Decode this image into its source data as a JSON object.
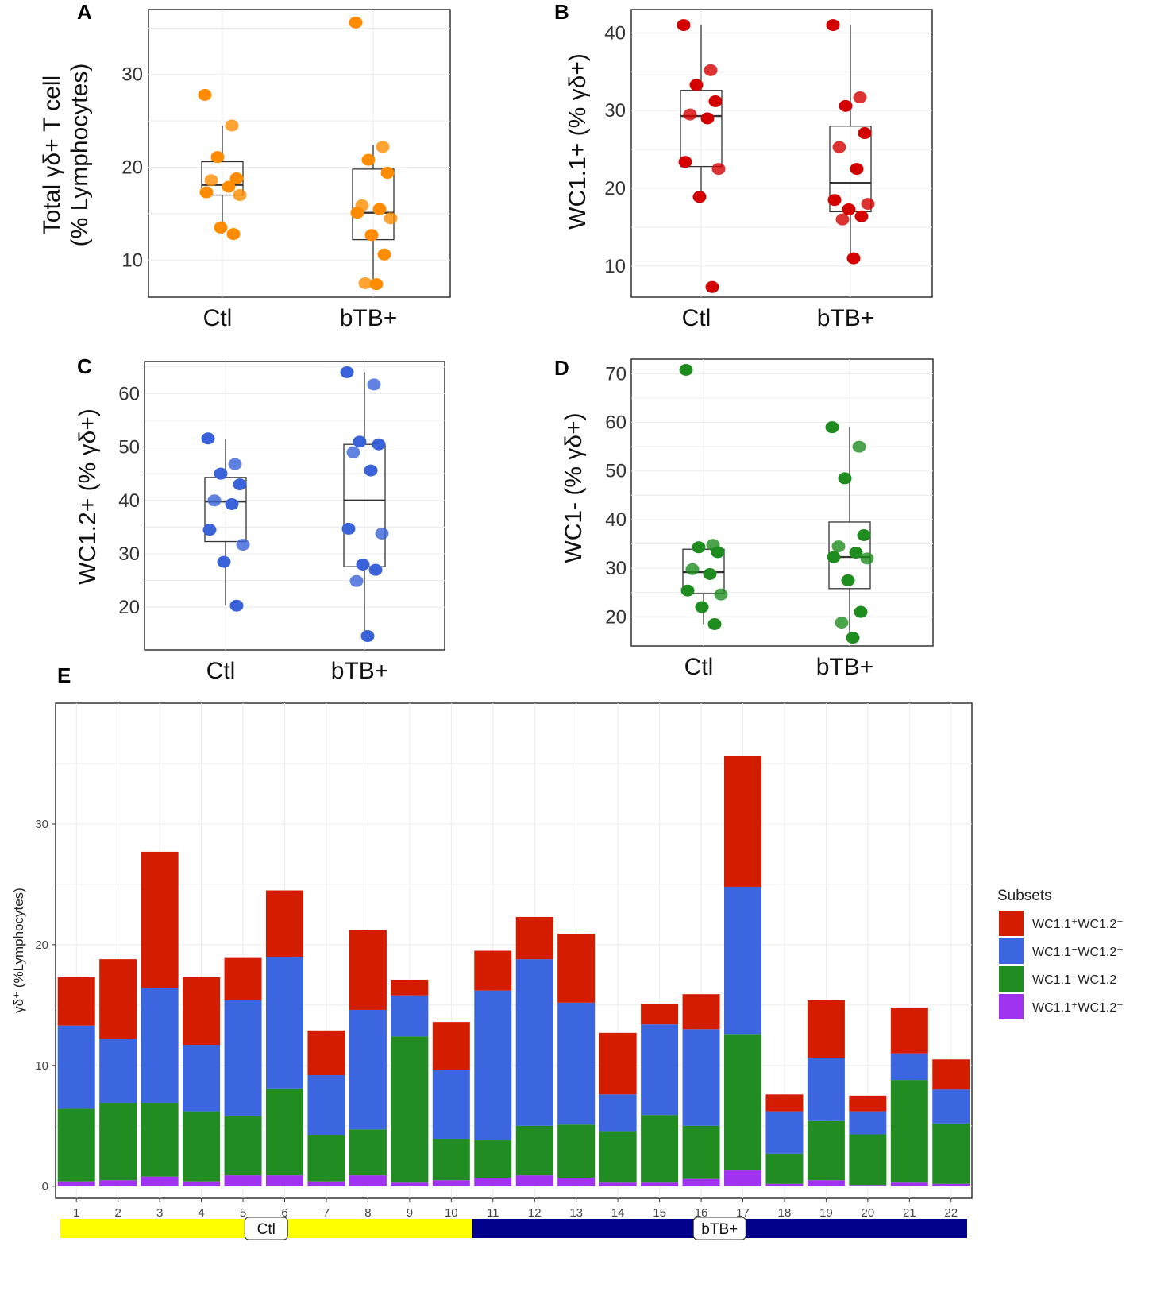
{
  "chart_data": [
    {
      "panel": "A",
      "type": "box",
      "categories": [
        "Ctl",
        "bTB+"
      ],
      "ylabel": "Total γδ+ T cell",
      "ylabel2": "(% Lymphocytes)",
      "ylim": [
        6,
        37
      ],
      "yticks": [
        10,
        20,
        30
      ],
      "color": "#ff8c00",
      "boxes": [
        {
          "q1": 17.0,
          "median": 18.1,
          "q3": 20.6,
          "whisker_low": 12.8,
          "whisker_high": 24.5
        },
        {
          "q1": 12.2,
          "median": 15.1,
          "q3": 19.8,
          "whisker_low": 7.5,
          "whisker_high": 22.4
        }
      ],
      "points": [
        [
          27.8,
          24.5,
          21.1,
          18.8,
          18.6,
          17.9,
          17.3,
          17.0,
          13.5,
          12.8
        ],
        [
          35.6,
          22.2,
          20.8,
          19.4,
          15.9,
          15.5,
          15.1,
          14.5,
          12.7,
          10.6,
          7.5,
          7.4
        ]
      ]
    },
    {
      "panel": "B",
      "type": "box",
      "categories": [
        "Ctl",
        "bTB+"
      ],
      "ylabel": "WC1.1+ (% γδ+)",
      "ylim": [
        6,
        43
      ],
      "yticks": [
        10,
        20,
        30,
        40
      ],
      "color": "#d40000",
      "boxes": [
        {
          "q1": 22.8,
          "median": 29.3,
          "q3": 32.6,
          "whisker_low": 18.9,
          "whisker_high": 41.0
        },
        {
          "q1": 17.0,
          "median": 20.7,
          "q3": 28.0,
          "whisker_low": 11.0,
          "whisker_high": 41.0
        }
      ],
      "points": [
        [
          41.0,
          35.2,
          33.3,
          31.2,
          29.5,
          29.0,
          23.4,
          22.5,
          18.9,
          7.3
        ],
        [
          41.0,
          31.7,
          30.6,
          27.1,
          25.3,
          22.5,
          18.5,
          18.0,
          17.3,
          16.4,
          16.0,
          11.0
        ]
      ]
    },
    {
      "panel": "C",
      "type": "box",
      "categories": [
        "Ctl",
        "bTB+"
      ],
      "ylabel": "WC1.2+ (% γδ+)",
      "ylim": [
        12,
        66
      ],
      "yticks": [
        20,
        30,
        40,
        50,
        60
      ],
      "color": "#3a63d9",
      "boxes": [
        {
          "q1": 32.3,
          "median": 39.8,
          "q3": 44.3,
          "whisker_low": 20.3,
          "whisker_high": 51.5
        },
        {
          "q1": 27.6,
          "median": 40.0,
          "q3": 50.5,
          "whisker_low": 14.6,
          "whisker_high": 64.0
        }
      ],
      "points": [
        [
          51.6,
          46.8,
          45.0,
          43.0,
          40.0,
          39.3,
          34.5,
          31.7,
          28.5,
          20.3
        ],
        [
          64.0,
          61.7,
          51.0,
          50.5,
          49.0,
          45.6,
          34.7,
          33.8,
          28.0,
          27.0,
          24.9,
          14.6
        ]
      ]
    },
    {
      "panel": "D",
      "type": "box",
      "categories": [
        "Ctl",
        "bTB+"
      ],
      "ylabel": "WC1- (% γδ+)",
      "ylim": [
        14,
        73
      ],
      "yticks": [
        20,
        30,
        40,
        50,
        60,
        70
      ],
      "color": "#1e8c1e",
      "boxes": [
        {
          "q1": 24.8,
          "median": 29.2,
          "q3": 33.9,
          "whisker_low": 18.5,
          "whisker_high": 33.9
        },
        {
          "q1": 25.8,
          "median": 32.3,
          "q3": 39.5,
          "whisker_low": 15.7,
          "whisker_high": 59.0
        }
      ],
      "points": [
        [
          70.8,
          34.8,
          34.3,
          33.3,
          29.8,
          28.8,
          25.4,
          24.6,
          22.0,
          18.5
        ],
        [
          59.0,
          55.0,
          48.5,
          36.8,
          34.5,
          33.2,
          32.3,
          32.0,
          27.5,
          21.0,
          18.8,
          15.7
        ]
      ]
    },
    {
      "panel": "E",
      "type": "stacked-bar",
      "categories": [
        "1",
        "2",
        "3",
        "4",
        "5",
        "6",
        "7",
        "8",
        "9",
        "10",
        "11",
        "12",
        "13",
        "14",
        "15",
        "16",
        "17",
        "18",
        "19",
        "20",
        "21",
        "22"
      ],
      "ylabel": "γδ⁺ (%Lymphocytes)",
      "ylim": [
        -1,
        40
      ],
      "yticks": [
        0,
        10,
        20,
        30
      ],
      "legend_title": "Subsets",
      "series": [
        {
          "name": "WC1.1⁺WC1.2⁺",
          "color": "#a033f0",
          "values": [
            0.4,
            0.5,
            0.8,
            0.4,
            0.9,
            0.9,
            0.4,
            0.9,
            0.3,
            0.5,
            0.7,
            0.9,
            0.7,
            0.3,
            0.3,
            0.6,
            1.3,
            0.2,
            0.5,
            0.1,
            0.3,
            0.2
          ]
        },
        {
          "name": "WC1.1⁻WC1.2⁻",
          "color": "#218c21",
          "values": [
            6.0,
            6.4,
            6.1,
            5.8,
            4.9,
            7.2,
            3.8,
            3.8,
            12.1,
            3.4,
            3.1,
            4.1,
            4.4,
            4.2,
            5.6,
            4.4,
            11.3,
            2.5,
            4.9,
            4.2,
            8.5,
            5.0
          ]
        },
        {
          "name": "WC1.1⁻WC1.2⁺",
          "color": "#3b66e0",
          "values": [
            6.9,
            5.3,
            9.5,
            5.5,
            9.6,
            10.9,
            5.0,
            9.9,
            3.4,
            5.7,
            12.4,
            13.8,
            10.1,
            3.1,
            7.5,
            8.0,
            12.2,
            3.5,
            5.2,
            1.9,
            2.2,
            2.8
          ]
        },
        {
          "name": "WC1.1⁺WC1.2⁻",
          "color": "#d41c00",
          "values": [
            4.0,
            6.6,
            11.3,
            5.6,
            3.5,
            5.5,
            3.7,
            6.6,
            1.3,
            4.0,
            3.3,
            3.5,
            5.7,
            5.1,
            1.7,
            2.9,
            10.8,
            1.4,
            4.8,
            1.3,
            3.8,
            2.5
          ]
        }
      ],
      "groups": [
        {
          "label": "Ctl",
          "from": 1,
          "to": 10,
          "color": "#ffff00"
        },
        {
          "label": "bTB+",
          "from": 11,
          "to": 22,
          "color": "#00008b"
        }
      ]
    }
  ]
}
